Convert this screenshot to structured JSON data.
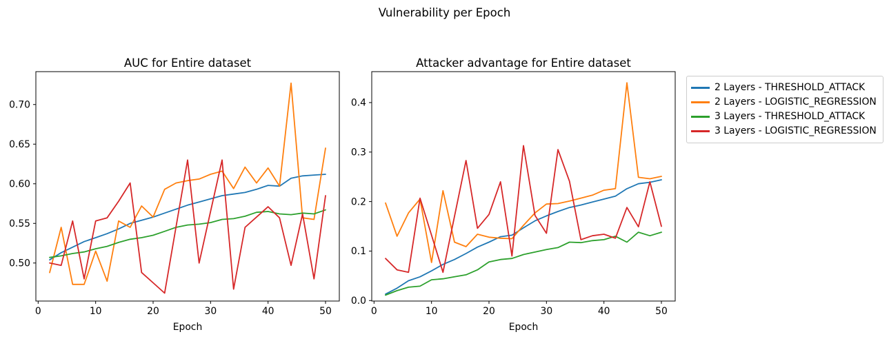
{
  "figure": {
    "suptitle": "Vulnerability per Epoch"
  },
  "legend": {
    "entries": [
      {
        "label": "2 Layers - THRESHOLD_ATTACK",
        "color": "#1f77b4"
      },
      {
        "label": "2 Layers - LOGISTIC_REGRESSION",
        "color": "#ff7f0e"
      },
      {
        "label": "3 Layers - THRESHOLD_ATTACK",
        "color": "#2ca02c"
      },
      {
        "label": "3 Layers - LOGISTIC_REGRESSION",
        "color": "#d62728"
      }
    ]
  },
  "chart_data": [
    {
      "type": "line",
      "title": "AUC for Entire dataset",
      "xlabel": "Epoch",
      "grid": false,
      "x": [
        2,
        4,
        6,
        8,
        10,
        12,
        14,
        16,
        18,
        20,
        22,
        24,
        26,
        28,
        30,
        32,
        34,
        36,
        38,
        40,
        42,
        44,
        46,
        48,
        50
      ],
      "xlim": [
        -0.4,
        52.4
      ],
      "ylim": [
        0.452,
        0.7415
      ],
      "xticks": {
        "values": [
          0,
          10,
          20,
          30,
          40,
          50
        ],
        "labels": [
          "0",
          "10",
          "20",
          "30",
          "40",
          "50"
        ]
      },
      "yticks": {
        "values": [
          0.5,
          0.55,
          0.6,
          0.65,
          0.7
        ],
        "labels": [
          "0.50",
          "0.55",
          "0.60",
          "0.65",
          "0.70"
        ]
      },
      "series": [
        {
          "name": "2 Layers - THRESHOLD_ATTACK",
          "color": "#1f77b4",
          "values": [
            0.504,
            0.513,
            0.52,
            0.527,
            0.532,
            0.537,
            0.543,
            0.55,
            0.554,
            0.558,
            0.563,
            0.568,
            0.573,
            0.577,
            0.581,
            0.585,
            0.587,
            0.589,
            0.593,
            0.598,
            0.597,
            0.607,
            0.61,
            0.611,
            0.612
          ]
        },
        {
          "name": "2 Layers - LOGISTIC_REGRESSION",
          "color": "#ff7f0e",
          "values": [
            0.488,
            0.545,
            0.473,
            0.473,
            0.515,
            0.477,
            0.553,
            0.545,
            0.572,
            0.558,
            0.593,
            0.601,
            0.604,
            0.606,
            0.612,
            0.616,
            0.594,
            0.621,
            0.601,
            0.62,
            0.597,
            0.727,
            0.557,
            0.555,
            0.645
          ]
        },
        {
          "name": "3 Layers - THRESHOLD_ATTACK",
          "color": "#2ca02c",
          "values": [
            0.507,
            0.509,
            0.512,
            0.514,
            0.518,
            0.521,
            0.526,
            0.53,
            0.532,
            0.535,
            0.54,
            0.545,
            0.548,
            0.549,
            0.551,
            0.555,
            0.556,
            0.559,
            0.564,
            0.565,
            0.562,
            0.561,
            0.563,
            0.562,
            0.567
          ]
        },
        {
          "name": "3 Layers - LOGISTIC_REGRESSION",
          "color": "#d62728",
          "values": [
            0.5,
            0.497,
            0.553,
            0.48,
            0.553,
            0.557,
            0.578,
            0.601,
            0.488,
            0.475,
            0.462,
            0.546,
            0.63,
            0.5,
            0.565,
            0.63,
            0.467,
            0.545,
            0.558,
            0.571,
            0.557,
            0.497,
            0.562,
            0.48,
            0.585
          ]
        }
      ]
    },
    {
      "type": "line",
      "title": "Attacker advantage for Entire dataset",
      "xlabel": "Epoch",
      "grid": false,
      "x": [
        2,
        4,
        6,
        8,
        10,
        12,
        14,
        16,
        18,
        20,
        22,
        24,
        26,
        28,
        30,
        32,
        34,
        36,
        38,
        40,
        42,
        44,
        46,
        48,
        50
      ],
      "xlim": [
        -0.4,
        52.4
      ],
      "ylim": [
        -0.001,
        0.4625
      ],
      "xticks": {
        "values": [
          0,
          10,
          20,
          30,
          40,
          50
        ],
        "labels": [
          "0",
          "10",
          "20",
          "30",
          "40",
          "50"
        ]
      },
      "yticks": {
        "values": [
          0.0,
          0.1,
          0.2,
          0.3,
          0.4
        ],
        "labels": [
          "0.0",
          "0.1",
          "0.2",
          "0.3",
          "0.4"
        ]
      },
      "series": [
        {
          "name": "2 Layers - THRESHOLD_ATTACK",
          "color": "#1f77b4",
          "values": [
            0.013,
            0.025,
            0.04,
            0.048,
            0.06,
            0.073,
            0.083,
            0.095,
            0.108,
            0.118,
            0.129,
            0.132,
            0.147,
            0.161,
            0.171,
            0.18,
            0.188,
            0.193,
            0.199,
            0.205,
            0.211,
            0.226,
            0.236,
            0.239,
            0.244
          ]
        },
        {
          "name": "2 Layers - LOGISTIC_REGRESSION",
          "color": "#ff7f0e",
          "values": [
            0.197,
            0.13,
            0.177,
            0.205,
            0.077,
            0.222,
            0.118,
            0.109,
            0.134,
            0.128,
            0.126,
            0.125,
            0.152,
            0.177,
            0.195,
            0.196,
            0.201,
            0.207,
            0.213,
            0.223,
            0.226,
            0.44,
            0.249,
            0.246,
            0.251
          ]
        },
        {
          "name": "3 Layers - THRESHOLD_ATTACK",
          "color": "#2ca02c",
          "values": [
            0.011,
            0.02,
            0.027,
            0.029,
            0.042,
            0.044,
            0.048,
            0.052,
            0.062,
            0.078,
            0.083,
            0.085,
            0.093,
            0.098,
            0.103,
            0.107,
            0.118,
            0.117,
            0.121,
            0.123,
            0.13,
            0.118,
            0.138,
            0.131,
            0.138
          ]
        },
        {
          "name": "3 Layers - LOGISTIC_REGRESSION",
          "color": "#d62728",
          "values": [
            0.085,
            0.062,
            0.057,
            0.207,
            0.132,
            0.057,
            0.17,
            0.283,
            0.146,
            0.174,
            0.24,
            0.09,
            0.313,
            0.172,
            0.136,
            0.305,
            0.241,
            0.123,
            0.131,
            0.134,
            0.126,
            0.188,
            0.149,
            0.24,
            0.15
          ]
        }
      ]
    }
  ]
}
